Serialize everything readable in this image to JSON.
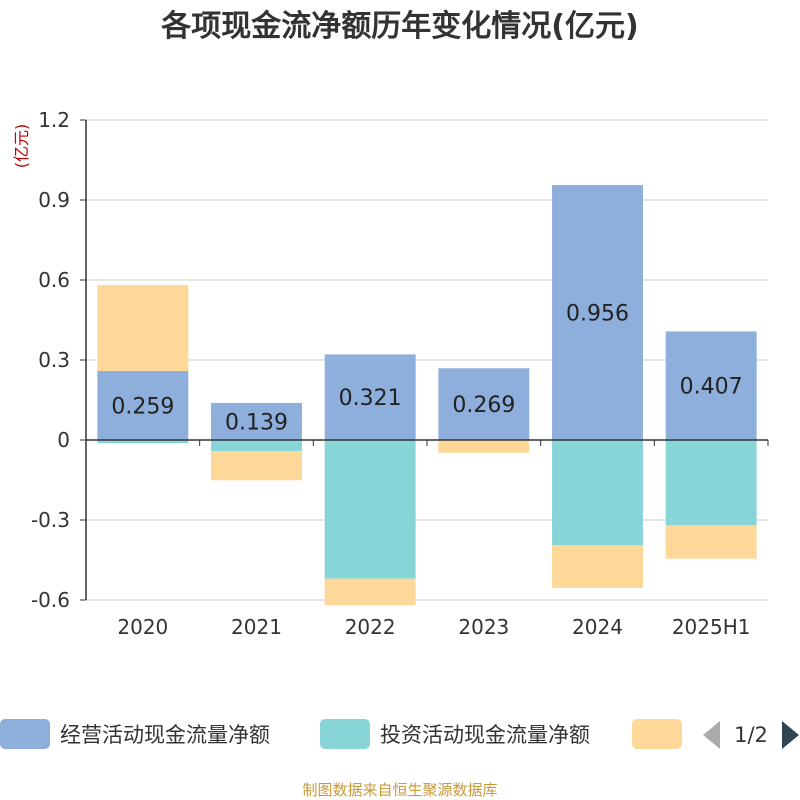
{
  "chart_data": {
    "type": "bar",
    "stacked": true,
    "title": "各项现金流净额历年变化情况(亿元)",
    "ylabel": "(亿元)",
    "categories": [
      "2020",
      "2021",
      "2022",
      "2023",
      "2024",
      "2025H1"
    ],
    "ylim": [
      -0.6,
      1.2
    ],
    "yticks": [
      "1.2",
      "0.9",
      "0.6",
      "0.3",
      "0",
      "-0.3",
      "-0.6"
    ],
    "grid": true,
    "series": [
      {
        "name": "经营活动现金流量净额",
        "color": "#8eaedb",
        "values": [
          0.259,
          0.139,
          0.321,
          0.269,
          0.956,
          0.407
        ]
      },
      {
        "name": "投资活动现金流量净额",
        "color": "#88d5d8",
        "values": [
          -0.012,
          -0.042,
          -0.52,
          0.0,
          -0.395,
          -0.32
        ]
      },
      {
        "name": "",
        "color": "#fdd899",
        "values": [
          0.322,
          -0.109,
          -0.1,
          -0.048,
          -0.16,
          -0.125
        ]
      }
    ],
    "data_labels": [
      "0.259",
      "0.139",
      "0.321",
      "0.269",
      "0.956",
      "0.407"
    ],
    "legend": {
      "placement": "bottom",
      "page": "1/2"
    },
    "source": "制图数据来自恒生聚源数据库"
  }
}
